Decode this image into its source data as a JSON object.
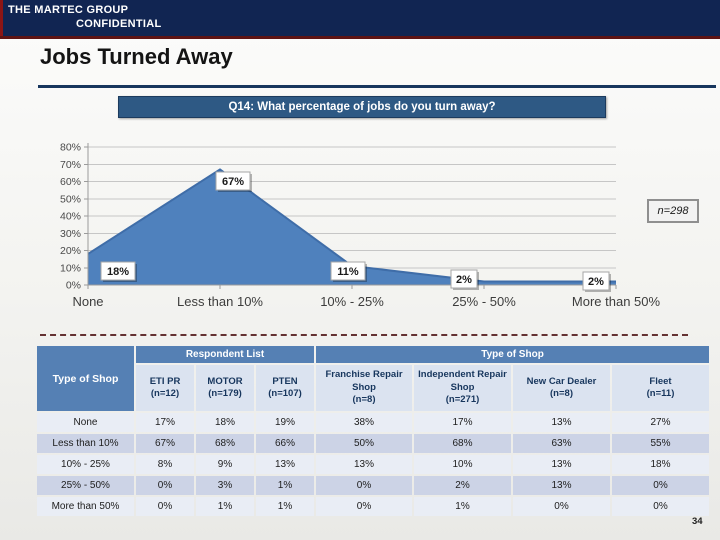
{
  "header": {
    "company": "THE MARTEC GROUP",
    "classification": "CONFIDENTIAL"
  },
  "slide": {
    "title": "Jobs Turned Away",
    "page_number": "34"
  },
  "question_banner": "Q14: What percentage of jobs do you turn away?",
  "sample_size_label": "n=298",
  "chart_data": {
    "type": "area",
    "title": "Q14: What percentage of jobs do you turn away?",
    "categories": [
      "None",
      "Less than 10%",
      "10% - 25%",
      "25% - 50%",
      "More than 50%"
    ],
    "values": [
      18,
      67,
      11,
      2,
      2
    ],
    "data_labels": [
      "18%",
      "67%",
      "11%",
      "2%",
      "2%"
    ],
    "ylim": [
      0,
      80
    ],
    "ytick_step": 10,
    "ytick_suffix": "%",
    "grid": true,
    "legend": false,
    "fill_color": "#4F81BD",
    "line_color": "#3F6DA8",
    "gridline_color": "#c6c6c6",
    "axis_color": "#9b9b9b",
    "tick_label_color": "#4a4a4a"
  },
  "table": {
    "corner_header": "Type of Shop",
    "groups": [
      {
        "label": "Respondent List",
        "span": 3
      },
      {
        "label": "Type of Shop",
        "span": 4
      }
    ],
    "columns": [
      {
        "name": "ETI PR",
        "n": "(n=12)"
      },
      {
        "name": "MOTOR",
        "n": "(n=179)"
      },
      {
        "name": "PTEN",
        "n": "(n=107)"
      },
      {
        "name": "Franchise Repair Shop",
        "n": "(n=8)"
      },
      {
        "name": "Independent Repair Shop",
        "n": "(n=271)"
      },
      {
        "name": "New Car Dealer",
        "n": "(n=8)"
      },
      {
        "name": "Fleet",
        "n": "(n=11)"
      }
    ],
    "rows": [
      {
        "label": "None",
        "values": [
          "17%",
          "18%",
          "19%",
          "38%",
          "17%",
          "13%",
          "27%"
        ]
      },
      {
        "label": "Less than 10%",
        "values": [
          "67%",
          "68%",
          "66%",
          "50%",
          "68%",
          "63%",
          "55%"
        ]
      },
      {
        "label": "10% - 25%",
        "values": [
          "8%",
          "9%",
          "13%",
          "13%",
          "10%",
          "13%",
          "18%"
        ]
      },
      {
        "label": "25% - 50%",
        "values": [
          "0%",
          "3%",
          "1%",
          "0%",
          "2%",
          "13%",
          "0%"
        ]
      },
      {
        "label": "More than 50%",
        "values": [
          "0%",
          "1%",
          "1%",
          "0%",
          "1%",
          "0%",
          "0%"
        ]
      }
    ]
  },
  "colors": {
    "header_bar": "#112552",
    "accent_red": "#8c1515",
    "banner_blue": "#2e5984",
    "table_header_blue": "#5580b4",
    "table_subheader": "#dbe3f0",
    "row_light": "#e9edf5",
    "row_dark": "#ccd3e6"
  }
}
